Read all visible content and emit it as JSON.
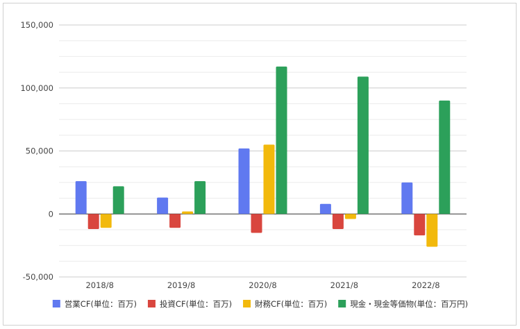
{
  "chart_data": {
    "type": "bar",
    "categories": [
      "2018/8",
      "2019/8",
      "2020/8",
      "2021/8",
      "2022/8"
    ],
    "series": [
      {
        "name": "営業CF(単位：百万)",
        "color": "#6079f0",
        "values": [
          26000,
          13000,
          52000,
          8000,
          25000
        ]
      },
      {
        "name": "投資CF(単位：百万)",
        "color": "#d9463e",
        "values": [
          -12000,
          -11000,
          -15000,
          -12000,
          -17000
        ]
      },
      {
        "name": "財務CF(単位：百万)",
        "color": "#f2b90c",
        "values": [
          -11000,
          2000,
          55000,
          -4000,
          -26000
        ]
      },
      {
        "name": "現金・現金等価物(単位：百万円)",
        "color": "#2ca05a",
        "values": [
          22000,
          26000,
          117000,
          109000,
          90000
        ]
      }
    ],
    "yticks": [
      "150,000",
      "100,000",
      "50,000",
      "0",
      "-50,000"
    ],
    "ytick_values": [
      150000,
      100000,
      50000,
      0,
      -50000
    ],
    "ylim": [
      -50000,
      150000
    ],
    "minor_grid_step": 12500,
    "grid": true,
    "legend_position": "bottom",
    "title": "",
    "xlabel": "",
    "ylabel": ""
  }
}
